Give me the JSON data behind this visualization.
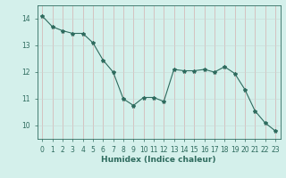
{
  "x": [
    0,
    1,
    2,
    3,
    4,
    5,
    6,
    7,
    8,
    9,
    10,
    11,
    12,
    13,
    14,
    15,
    16,
    17,
    18,
    19,
    20,
    21,
    22,
    23
  ],
  "y": [
    14.1,
    13.7,
    13.55,
    13.45,
    13.45,
    13.1,
    12.45,
    12.0,
    11.0,
    10.75,
    11.05,
    11.05,
    10.9,
    12.1,
    12.05,
    12.05,
    12.1,
    12.0,
    12.2,
    11.95,
    11.35,
    10.55,
    10.1,
    9.8
  ],
  "xlabel": "Humidex (Indice chaleur)",
  "xlim": [
    -0.5,
    23.5
  ],
  "ylim": [
    9.5,
    14.5
  ],
  "yticks": [
    10,
    11,
    12,
    13,
    14
  ],
  "xticks": [
    0,
    1,
    2,
    3,
    4,
    5,
    6,
    7,
    8,
    9,
    10,
    11,
    12,
    13,
    14,
    15,
    16,
    17,
    18,
    19,
    20,
    21,
    22,
    23
  ],
  "line_color": "#2e6b5e",
  "marker": "*",
  "marker_size": 3,
  "bg_color": "#d4f0eb",
  "grid_color_v": "#d4a0a0",
  "grid_color_h": "#c8d8d4",
  "axis_color": "#2e6b5e",
  "tick_label_fontsize": 5.5,
  "xlabel_fontsize": 6.5,
  "linewidth": 0.8
}
